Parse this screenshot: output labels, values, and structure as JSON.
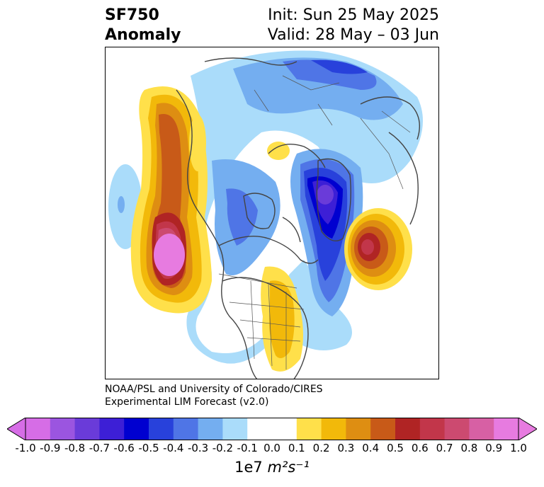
{
  "title": {
    "left_line1": "SF750",
    "left_line2": "Anomaly",
    "right_line1": "Init: Sun 25 May 2025",
    "right_line2": "Valid: 28 May – 03 Jun"
  },
  "credit": {
    "line1": "NOAA/PSL and University of Colorado/CIRES",
    "line2": "Experimental LIM Forecast (v2.0)"
  },
  "colorbar": {
    "levels": [
      -1.0,
      -0.9,
      -0.8,
      -0.7,
      -0.6,
      -0.5,
      -0.4,
      -0.3,
      -0.2,
      -0.1,
      0.0,
      0.1,
      0.2,
      0.3,
      0.4,
      0.5,
      0.6,
      0.7,
      0.8,
      0.9,
      1.0
    ],
    "tick_labels": [
      "-1.0",
      "-0.9",
      "-0.8",
      "-0.7",
      "-0.6",
      "-0.5",
      "-0.4",
      "-0.3",
      "-0.2",
      "-0.1",
      "0.0",
      "0.1",
      "0.2",
      "0.3",
      "0.4",
      "0.5",
      "0.6",
      "0.7",
      "0.8",
      "0.9",
      "1.0"
    ],
    "colors": [
      "#d66de6",
      "#9b55e0",
      "#6a3bd9",
      "#3d1fd6",
      "#0000d0",
      "#2841db",
      "#4f75e6",
      "#74aef0",
      "#aadcfa",
      "#ffffff",
      "#ffffff",
      "#ffe04a",
      "#f2b90a",
      "#de8e12",
      "#c85a18",
      "#b02424",
      "#c2364a",
      "#cc4a70",
      "#d760a4",
      "#e77be0"
    ],
    "extend_low_color": "#d66de6",
    "extend_high_color": "#e77be0",
    "units_prefix": "1e7",
    "units": "m²s⁻¹"
  },
  "map": {
    "projection": "north-polar-stereographic",
    "anomaly_centers": [
      {
        "name": "North Pacific high",
        "sign": "positive",
        "peak": 1.0
      },
      {
        "name": "Eastern US high",
        "sign": "positive",
        "peak": 0.3
      },
      {
        "name": "North Atlantic high",
        "sign": "positive",
        "peak": 0.6
      },
      {
        "name": "Greenland-Arctic low",
        "sign": "negative",
        "peak": -0.8
      },
      {
        "name": "Hudson Bay low",
        "sign": "negative",
        "peak": -0.3
      }
    ]
  }
}
